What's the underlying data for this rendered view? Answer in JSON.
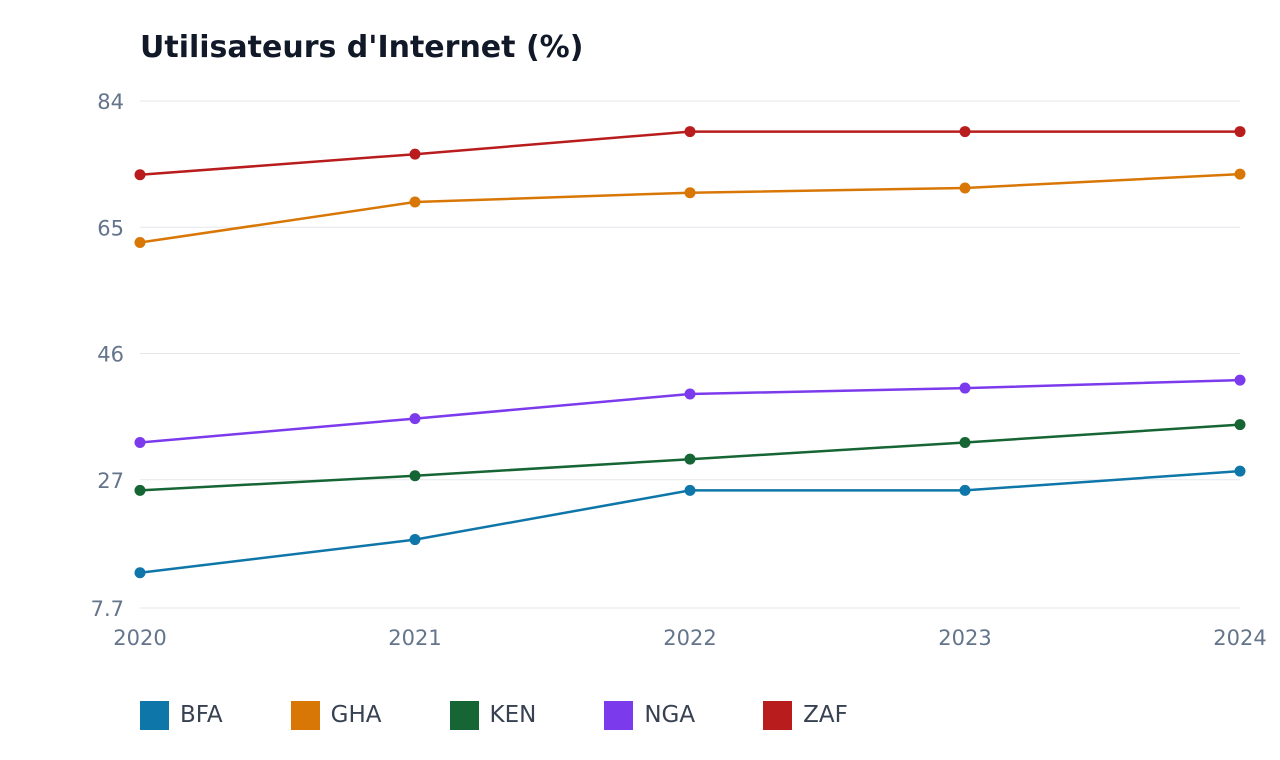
{
  "chart_data": {
    "type": "line",
    "title": "Utilisateurs d'Internet (%)",
    "xlabel": "",
    "ylabel": "",
    "x": [
      "2020",
      "2021",
      "2022",
      "2023",
      "2024"
    ],
    "y_ticks": [
      "84",
      "65",
      "46",
      "27",
      "7.7"
    ],
    "ylim": [
      7.7,
      84
    ],
    "grid": true,
    "legend_position": "bottom-left",
    "series": [
      {
        "name": "BFA",
        "color": "#0e76a8",
        "values": [
          13.0,
          18.0,
          25.4,
          25.4,
          28.3
        ]
      },
      {
        "name": "GHA",
        "color": "#d97706",
        "values": [
          62.7,
          68.8,
          70.2,
          70.9,
          73.0
        ]
      },
      {
        "name": "KEN",
        "color": "#166534",
        "values": [
          25.4,
          27.6,
          30.1,
          32.6,
          35.3
        ]
      },
      {
        "name": "NGA",
        "color": "#7c3aed",
        "values": [
          32.6,
          36.2,
          39.9,
          40.8,
          42.0
        ]
      },
      {
        "name": "ZAF",
        "color": "#b91c1c",
        "values": [
          72.9,
          76.0,
          79.4,
          79.4,
          79.4
        ]
      }
    ]
  }
}
